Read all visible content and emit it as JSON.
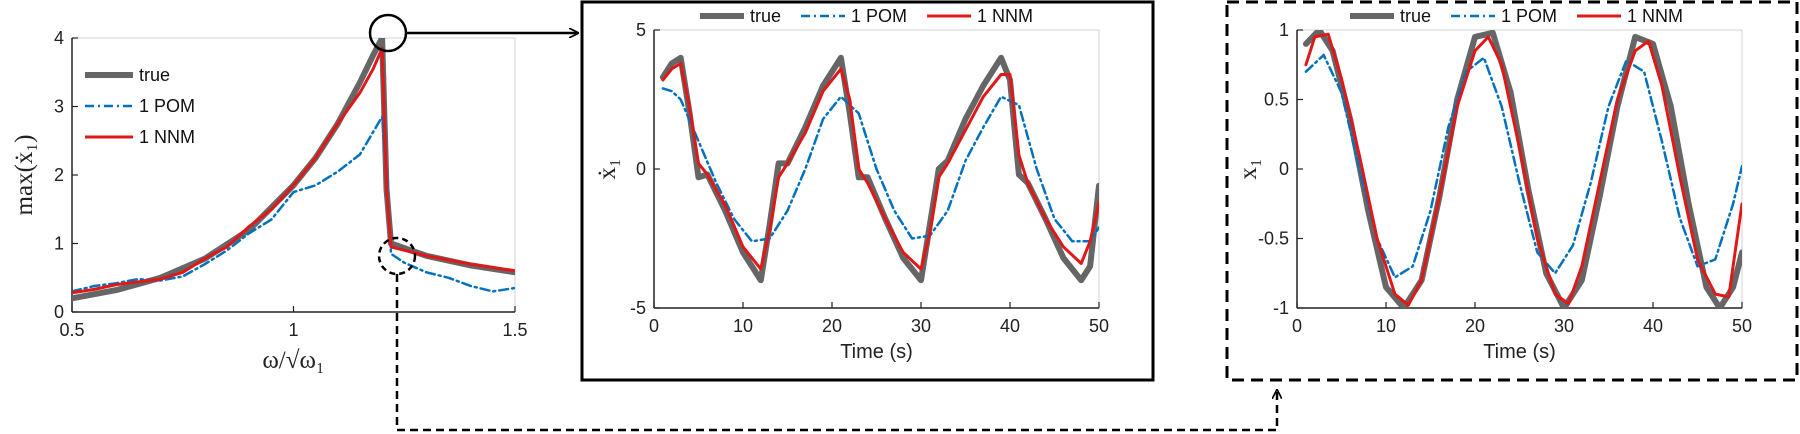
{
  "colors": {
    "true": "#666666",
    "pom": "#0072BD",
    "nnm": "#E01818",
    "axis": "#222222",
    "frame": "#000000"
  },
  "chart_data": [
    {
      "type": "line",
      "id": "freq",
      "xlabel": "ω/√ω₁",
      "ylabel": "max(ẋ₁)",
      "xlim": [
        0.5,
        1.5
      ],
      "ylim": [
        0,
        4
      ],
      "xticks": [
        0.5,
        1,
        1.5
      ],
      "yticks": [
        0,
        1,
        2,
        3,
        4
      ],
      "legend": {
        "placement": "top-left",
        "entries": [
          "true",
          "1 POM",
          "1 NNM"
        ]
      },
      "series": [
        {
          "name": "true",
          "style": "true",
          "x": [
            0.5,
            0.6,
            0.7,
            0.8,
            0.9,
            1.0,
            1.05,
            1.1,
            1.15,
            1.18,
            1.2,
            1.21,
            1.22,
            1.3,
            1.4,
            1.5
          ],
          "y": [
            0.2,
            0.32,
            0.5,
            0.78,
            1.2,
            1.85,
            2.25,
            2.75,
            3.35,
            3.75,
            4.0,
            1.8,
            1.0,
            0.82,
            0.68,
            0.58
          ]
        },
        {
          "name": "1 POM",
          "style": "pom",
          "x": [
            0.5,
            0.55,
            0.6,
            0.65,
            0.7,
            0.75,
            0.8,
            0.85,
            0.9,
            0.95,
            1.0,
            1.05,
            1.1,
            1.15,
            1.2,
            1.21,
            1.22,
            1.25,
            1.3,
            1.35,
            1.4,
            1.45,
            1.5
          ],
          "y": [
            0.3,
            0.38,
            0.42,
            0.48,
            0.46,
            0.52,
            0.7,
            0.9,
            1.15,
            1.35,
            1.75,
            1.85,
            2.05,
            2.3,
            2.85,
            2.0,
            0.85,
            0.72,
            0.58,
            0.5,
            0.38,
            0.3,
            0.35
          ]
        },
        {
          "name": "1 NNM",
          "style": "nnm",
          "x": [
            0.5,
            0.55,
            0.6,
            0.65,
            0.7,
            0.75,
            0.8,
            0.85,
            0.9,
            0.95,
            1.0,
            1.05,
            1.1,
            1.15,
            1.18,
            1.2,
            1.21,
            1.22,
            1.3,
            1.4,
            1.5
          ],
          "y": [
            0.28,
            0.33,
            0.4,
            0.44,
            0.48,
            0.58,
            0.78,
            0.95,
            1.25,
            1.5,
            1.85,
            2.25,
            2.75,
            3.2,
            3.55,
            3.85,
            1.8,
            0.95,
            0.82,
            0.7,
            0.6
          ]
        }
      ]
    },
    {
      "type": "line",
      "id": "velocity",
      "xlabel": "Time (s)",
      "ylabel": "ẋ₁",
      "xlim": [
        0,
        50
      ],
      "ylim": [
        -5,
        5
      ],
      "xticks": [
        0,
        10,
        20,
        30,
        40,
        50
      ],
      "yticks": [
        -5,
        0,
        5
      ],
      "legend": {
        "placement": "top",
        "entries": [
          "true",
          "1 POM",
          "1 NNM"
        ]
      },
      "series": [
        {
          "name": "true",
          "style": "true",
          "x": [
            1,
            2,
            3,
            4,
            5,
            6,
            8,
            10,
            12,
            13,
            14,
            15,
            17,
            19,
            21,
            22,
            23,
            24,
            26,
            28,
            30,
            31,
            32,
            33,
            35,
            37,
            39,
            40,
            41,
            42,
            44,
            46,
            48,
            49,
            50
          ],
          "y": [
            3.3,
            3.8,
            4.0,
            2.0,
            -0.3,
            -0.2,
            -1.5,
            -3.0,
            -4.0,
            -2.0,
            0.2,
            0.2,
            1.5,
            3.0,
            4.0,
            2.0,
            -0.3,
            -0.3,
            -1.8,
            -3.2,
            -4.0,
            -2.0,
            0.0,
            0.3,
            1.8,
            3.0,
            4.0,
            3.2,
            -0.2,
            -0.5,
            -1.8,
            -3.2,
            -4.0,
            -3.5,
            -0.6
          ]
        },
        {
          "name": "1 POM",
          "style": "pom",
          "x": [
            1,
            2,
            3,
            5,
            7,
            9,
            11,
            13,
            15,
            17,
            19,
            21,
            23,
            25,
            27,
            29,
            31,
            33,
            35,
            37,
            39,
            41,
            43,
            45,
            47,
            49,
            50
          ],
          "y": [
            2.9,
            2.8,
            2.5,
            1.0,
            -0.5,
            -1.8,
            -2.6,
            -2.5,
            -1.5,
            0.0,
            1.8,
            2.6,
            2.0,
            0.0,
            -1.5,
            -2.5,
            -2.4,
            -1.5,
            0.3,
            1.5,
            2.6,
            2.3,
            0.0,
            -1.8,
            -2.6,
            -2.6,
            -2.1
          ]
        },
        {
          "name": "1 NNM",
          "style": "nnm",
          "x": [
            1,
            2,
            3,
            4,
            5,
            6,
            8,
            10,
            12,
            13,
            14,
            15,
            17,
            19,
            21,
            22,
            23,
            24,
            26,
            28,
            30,
            31,
            32,
            33,
            35,
            37,
            39,
            40,
            41,
            42,
            44,
            46,
            48,
            49,
            50
          ],
          "y": [
            3.2,
            3.6,
            3.8,
            2.2,
            0.2,
            -0.2,
            -1.3,
            -2.8,
            -3.6,
            -2.2,
            -0.3,
            0.2,
            1.3,
            2.8,
            3.6,
            2.5,
            0.0,
            -0.5,
            -1.8,
            -3.0,
            -3.6,
            -2.3,
            -0.3,
            0.2,
            1.4,
            2.6,
            3.4,
            3.4,
            0.5,
            -0.5,
            -1.8,
            -2.8,
            -3.4,
            -2.6,
            -1.2
          ]
        }
      ]
    },
    {
      "type": "line",
      "id": "displacement",
      "xlabel": "Time (s)",
      "ylabel": "x₁",
      "xlim": [
        0,
        50
      ],
      "ylim": [
        -1,
        1
      ],
      "xticks": [
        0,
        10,
        20,
        30,
        40,
        50
      ],
      "yticks": [
        -1,
        -0.5,
        0,
        0.5,
        1
      ],
      "legend": {
        "placement": "top",
        "entries": [
          "true",
          "1 POM",
          "1 NNM"
        ]
      },
      "series": [
        {
          "name": "true",
          "style": "true",
          "x": [
            1,
            2.5,
            4,
            6,
            8,
            10,
            12,
            14,
            16,
            18,
            20,
            22,
            24,
            26,
            28,
            30,
            32,
            34,
            36,
            38,
            40,
            42,
            44,
            46,
            47.5,
            49,
            50
          ],
          "y": [
            0.9,
            1.0,
            0.85,
            0.35,
            -0.3,
            -0.85,
            -1.0,
            -0.8,
            -0.2,
            0.5,
            0.95,
            0.98,
            0.55,
            -0.15,
            -0.75,
            -1.0,
            -0.8,
            -0.2,
            0.45,
            0.95,
            0.9,
            0.45,
            -0.25,
            -0.85,
            -1.0,
            -0.85,
            -0.6
          ]
        },
        {
          "name": "1 POM",
          "style": "pom",
          "x": [
            1,
            3,
            5,
            7,
            9,
            11,
            13,
            15,
            17,
            19,
            21,
            23,
            25,
            27,
            29,
            31,
            33,
            35,
            37,
            39,
            41,
            43,
            45,
            47,
            49,
            50
          ],
          "y": [
            0.7,
            0.82,
            0.55,
            0.0,
            -0.5,
            -0.78,
            -0.7,
            -0.3,
            0.3,
            0.7,
            0.8,
            0.45,
            -0.1,
            -0.6,
            -0.75,
            -0.55,
            -0.1,
            0.45,
            0.78,
            0.7,
            0.2,
            -0.35,
            -0.7,
            -0.65,
            -0.25,
            0.02
          ]
        },
        {
          "name": "1 NNM",
          "style": "nnm",
          "x": [
            1,
            2,
            3.5,
            5,
            7,
            9,
            11,
            12.5,
            14,
            16,
            18,
            20,
            21.5,
            23,
            25,
            27,
            29,
            30.5,
            32,
            34,
            36,
            38,
            39.5,
            41,
            43,
            45,
            47,
            48.5,
            50
          ],
          "y": [
            0.75,
            0.95,
            0.97,
            0.65,
            0.1,
            -0.5,
            -0.9,
            -0.98,
            -0.8,
            -0.2,
            0.45,
            0.85,
            0.95,
            0.75,
            0.15,
            -0.5,
            -0.9,
            -0.97,
            -0.7,
            -0.1,
            0.5,
            0.85,
            0.92,
            0.6,
            -0.05,
            -0.65,
            -0.9,
            -0.92,
            -0.25
          ]
        }
      ]
    }
  ]
}
